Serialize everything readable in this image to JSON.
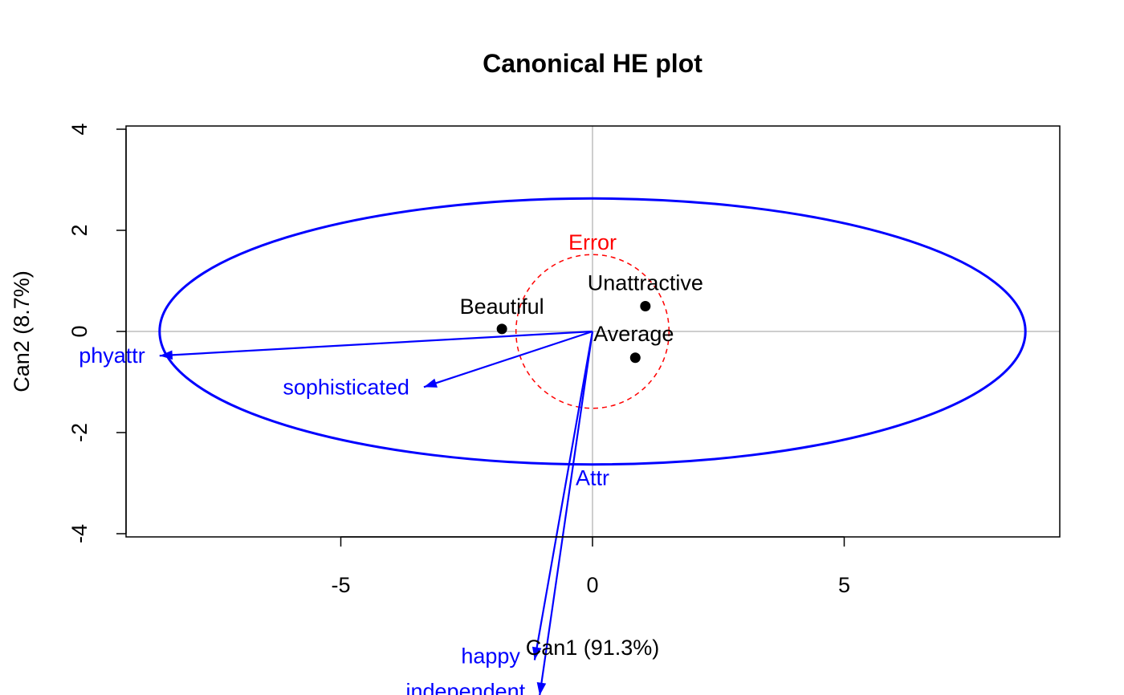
{
  "chart_data": {
    "type": "scatter",
    "title": "Canonical HE plot",
    "xlabel": "Can1 (91.3%)",
    "ylabel": "Can2 (8.7%)",
    "xlim": [
      -9.25,
      9.25
    ],
    "ylim": [
      -4.1,
      4.0
    ],
    "x_ticks": [
      {
        "value": -5,
        "label": "-5"
      },
      {
        "value": 0,
        "label": "0"
      },
      {
        "value": 5,
        "label": "5"
      }
    ],
    "y_ticks": [
      {
        "value": -4,
        "label": "-4"
      },
      {
        "value": -2,
        "label": "-2"
      },
      {
        "value": 0,
        "label": "0"
      },
      {
        "value": 2,
        "label": "2"
      },
      {
        "value": 4,
        "label": "4"
      }
    ],
    "reference_lines": {
      "x": 0,
      "y": 0,
      "color": "#bebebe"
    },
    "group_means": [
      {
        "label": "Beautiful",
        "x": -1.8,
        "y": 0.05
      },
      {
        "label": "Unattractive",
        "x": 1.05,
        "y": 0.5
      },
      {
        "label": "Average",
        "x": 0.85,
        "y": -0.52
      }
    ],
    "ellipses": [
      {
        "label": "Attr",
        "cx": 0,
        "cy": 0,
        "rx": 8.6,
        "ry": 2.63,
        "color": "#0000ff",
        "style": "solid"
      },
      {
        "label": "Error",
        "cx": 0,
        "cy": 0,
        "rx": 1.52,
        "ry": 1.52,
        "color": "#ff0000",
        "style": "dashed"
      }
    ],
    "vectors": [
      {
        "label": "phyattr",
        "x": -8.6,
        "y": -0.48
      },
      {
        "label": "sophisticated",
        "x": -3.35,
        "y": -1.1
      },
      {
        "label": "happy",
        "x": -1.15,
        "y": -6.5
      },
      {
        "label": "independent",
        "x": -1.05,
        "y": -7.2
      }
    ],
    "colors": {
      "vectors": "#0000ff",
      "means": "#000000",
      "error": "#ff0000",
      "hypothesis": "#0000ff"
    }
  }
}
